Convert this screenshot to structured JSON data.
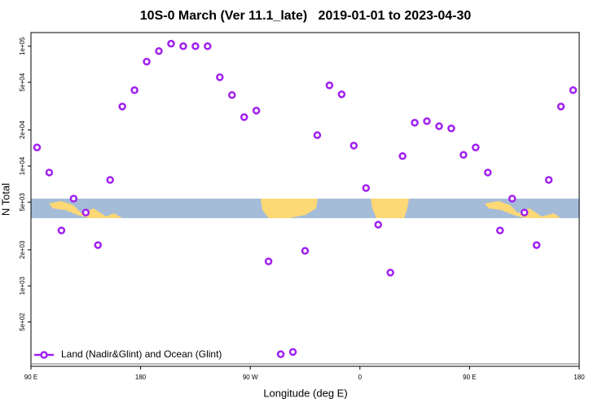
{
  "chart_data": {
    "type": "scatter",
    "title": "10S-0 March (Ver 11.1_late)   2019-01-01 to 2023-04-30",
    "x_label": "Longitude (deg E)",
    "y_label": "N Total",
    "ylog": true,
    "xlim": [
      90,
      540
    ],
    "ylim": [
      220,
      130000
    ],
    "xticks": [
      {
        "value": 90,
        "label": "90 E"
      },
      {
        "value": 180,
        "label": "180"
      },
      {
        "value": 270,
        "label": "90 W"
      },
      {
        "value": 360,
        "label": "0"
      },
      {
        "value": 450,
        "label": "90 E"
      },
      {
        "value": 540,
        "label": "180"
      }
    ],
    "yticks": [
      {
        "value": 500,
        "label": "5e+02"
      },
      {
        "value": 1000,
        "label": "1e+03"
      },
      {
        "value": 2000,
        "label": "2e+03"
      },
      {
        "value": 5000,
        "label": "5e+03"
      },
      {
        "value": 10000,
        "label": "1e+04"
      },
      {
        "value": 20000,
        "label": "2e+04"
      },
      {
        "value": 50000,
        "label": "5e+04"
      },
      {
        "value": 100000,
        "label": "1e+05"
      }
    ],
    "legend": "bottom-left",
    "series": [
      {
        "name": "Land (Nadir&Glint) and Ocean (Glint)",
        "color": "#a020f0",
        "x": [
          95,
          105,
          115,
          125,
          135,
          145,
          155,
          165,
          175,
          185,
          195,
          205,
          215,
          225,
          235,
          245,
          255,
          265,
          275,
          285,
          295,
          305,
          315,
          325,
          335,
          345,
          355,
          365,
          375,
          385,
          395,
          405,
          415,
          425,
          435,
          445,
          455,
          465,
          475,
          485,
          495,
          505,
          515,
          525,
          535
        ],
        "values": [
          14300,
          8830,
          2900,
          5350,
          4090,
          2190,
          7660,
          31400,
          43000,
          74300,
          91000,
          105000,
          100000,
          100000,
          100000,
          55100,
          39100,
          25600,
          29000,
          1600,
          269,
          281,
          1960,
          18100,
          47100,
          39700,
          14800,
          6550,
          3240,
          1290,
          12100,
          23000,
          23700,
          21500,
          20600,
          12400,
          14300,
          8830,
          2900,
          5350,
          4090,
          2190,
          7660,
          31400,
          43000
        ]
      }
    ]
  }
}
